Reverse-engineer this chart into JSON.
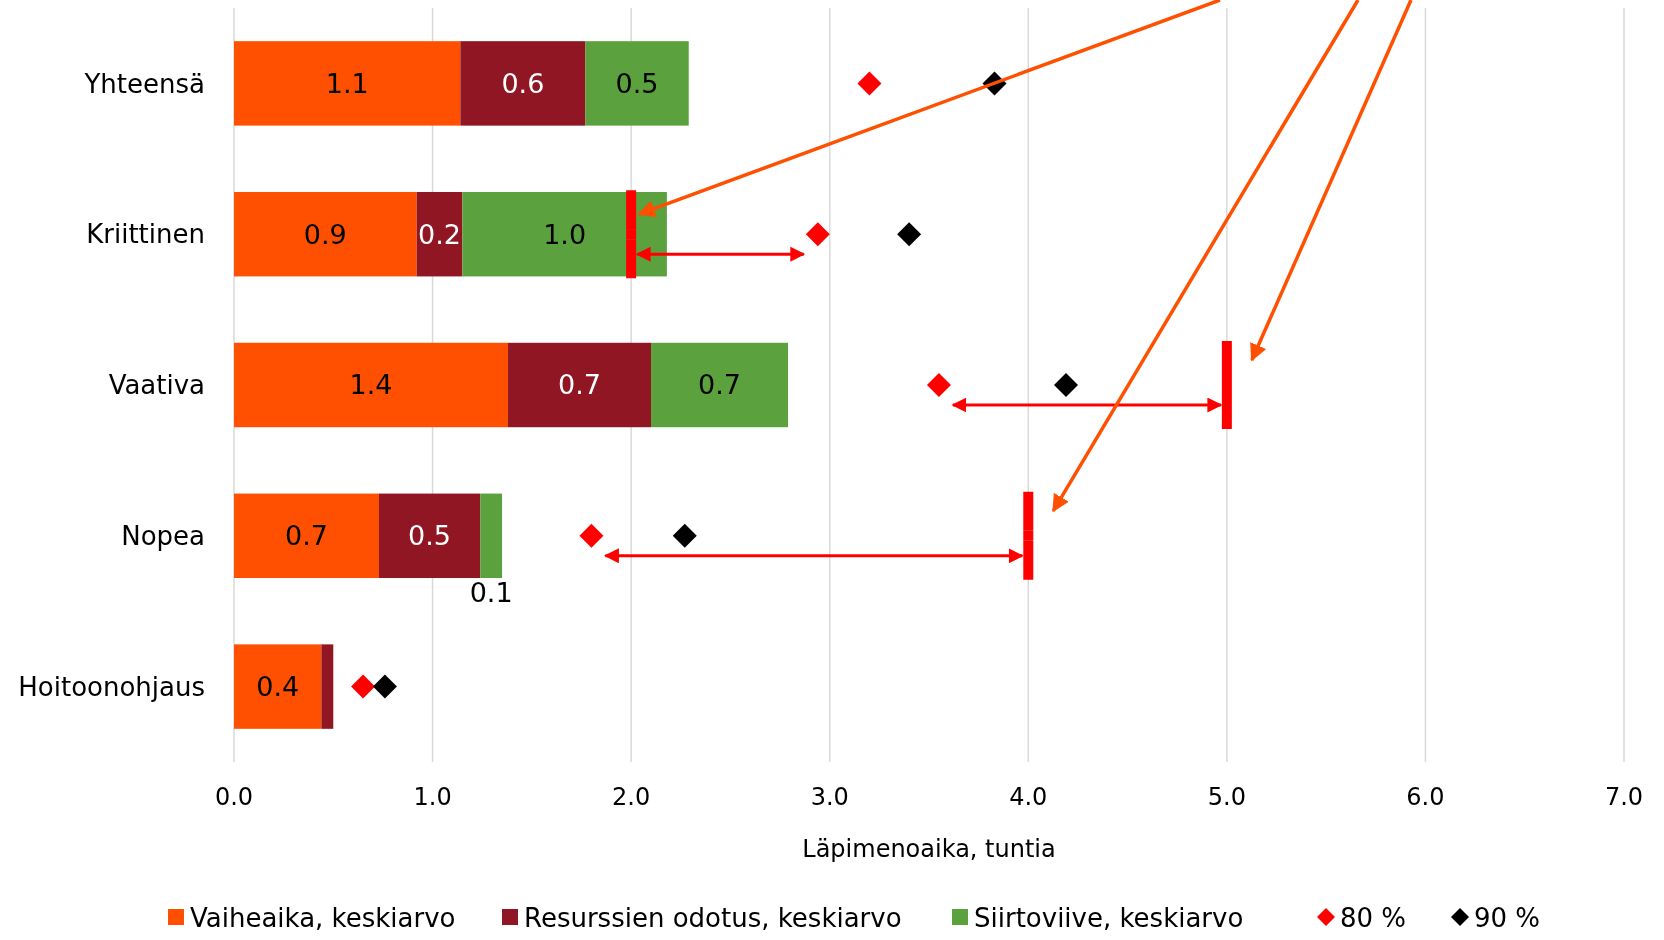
{
  "chart_data": {
    "type": "bar",
    "orientation": "horizontal",
    "stacked": true,
    "xlabel": "Läpimenoaika, tuntia",
    "categories": [
      "Yhteensä",
      "Kriittinen",
      "Vaativa",
      "Nopea",
      "Hoitoonohjaus"
    ],
    "series": [
      {
        "name": "Vaiheaika, keskiarvo",
        "color": "#fe5000",
        "values": [
          1.14,
          0.92,
          1.38,
          0.73,
          0.44
        ],
        "value_labels": [
          "1.1",
          "0.9",
          "1.4",
          "0.7",
          "0.4"
        ]
      },
      {
        "name": "Resurssien odotus, keskiarvo",
        "color": "#8f1622",
        "values": [
          0.63,
          0.23,
          0.72,
          0.51,
          0.06
        ],
        "value_labels": [
          "0.6",
          "0.2",
          "0.7",
          "0.5",
          null
        ]
      },
      {
        "name": "Siirtoviive, keskiarvo",
        "color": "#5ba23f",
        "values": [
          0.52,
          1.03,
          0.69,
          0.11,
          0
        ],
        "value_labels": [
          "0.5",
          "1.0",
          "0.7",
          "0.1",
          null
        ]
      },
      {
        "name": "80 %",
        "type": "scatter",
        "marker": "diamond",
        "color": "#ff0000",
        "x": [
          "Yhteensä",
          "Kriittinen",
          "Vaativa",
          "Nopea",
          "Hoitoonohjaus"
        ],
        "values": [
          3.2,
          2.94,
          3.55,
          1.8,
          0.65
        ]
      },
      {
        "name": "90 %",
        "type": "scatter",
        "marker": "diamond",
        "color": "#000000",
        "x": [
          "Yhteensä",
          "Kriittinen",
          "Vaativa",
          "Nopea",
          "Hoitoonohjaus"
        ],
        "values": [
          3.83,
          3.4,
          4.19,
          2.27,
          0.76
        ]
      },
      {
        "type": "scatter",
        "marker": "square",
        "color": "#ff0000",
        "x": [
          "Yhteensä",
          "Kriittinen",
          "Vaativa",
          "Nopea",
          "Hoitoonohjaus"
        ],
        "values": [
          null,
          2.0,
          5.0,
          4.0,
          null
        ]
      }
    ],
    "xlim": [
      0,
      7
    ],
    "xticks": [
      {
        "value": 0,
        "label": "0.0"
      },
      {
        "value": 1,
        "label": "1.0"
      },
      {
        "value": 2,
        "label": "2.0"
      },
      {
        "value": 3,
        "label": "3.0"
      },
      {
        "value": 4,
        "label": "4.0"
      },
      {
        "value": 5,
        "label": "5.0"
      },
      {
        "value": 6,
        "label": "6.0"
      },
      {
        "value": 7,
        "label": "7.0"
      }
    ],
    "grid": "x",
    "legend": "bottom"
  }
}
